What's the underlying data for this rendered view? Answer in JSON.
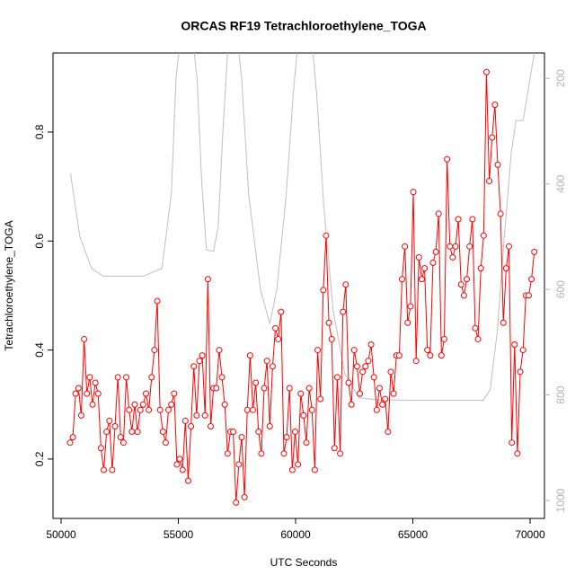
{
  "chart_data": {
    "type": "line",
    "title": "ORCAS RF19 Tetrachloroethylene_TOGA",
    "x_label": "UTC Seconds",
    "y_label": "Tetrachloroethylene_TOGA",
    "xlim": [
      49655,
      70613
    ],
    "ylim": [
      0.091,
      0.945
    ],
    "y2lim": [
      1034,
      152
    ],
    "xticks": [
      50000,
      55000,
      60000,
      65000,
      70000
    ],
    "yticks": [
      0.2,
      0.4,
      0.6,
      0.8
    ],
    "y2ticks": [
      200,
      400,
      600,
      800,
      1000
    ],
    "series": [
      {
        "color": "#ff0000",
        "markers": true,
        "x": [
          50380,
          50500,
          50620,
          50740,
          50860,
          50980,
          51100,
          51220,
          51340,
          51460,
          51580,
          51700,
          51820,
          51940,
          52060,
          52180,
          52300,
          52420,
          52540,
          52660,
          52780,
          52900,
          53020,
          53140,
          53260,
          53380,
          53500,
          53620,
          53740,
          53860,
          53980,
          54100,
          54220,
          54340,
          54460,
          54580,
          54700,
          54820,
          54940,
          55060,
          55180,
          55300,
          55420,
          55540,
          55660,
          55780,
          55900,
          56020,
          56140,
          56260,
          56380,
          56500,
          56620,
          56740,
          56860,
          56980,
          57100,
          57220,
          57340,
          57460,
          57580,
          57700,
          57820,
          57940,
          58060,
          58180,
          58300,
          58420,
          58540,
          58660,
          58780,
          58900,
          59020,
          59140,
          59260,
          59380,
          59500,
          59620,
          59740,
          59860,
          59980,
          60100,
          60220,
          60340,
          60460,
          60580,
          60700,
          60820,
          60940,
          61060,
          61180,
          61300,
          61420,
          61540,
          61660,
          61780,
          61900,
          62020,
          62140,
          62260,
          62380,
          62500,
          62620,
          62740,
          62860,
          62980,
          63100,
          63220,
          63340,
          63460,
          63580,
          63700,
          63820,
          63940,
          64060,
          64180,
          64300,
          64420,
          64540,
          64660,
          64780,
          64900,
          65020,
          65140,
          65260,
          65380,
          65500,
          65620,
          65740,
          65860,
          65980,
          66100,
          66220,
          66340,
          66460,
          66580,
          66700,
          66820,
          66940,
          67060,
          67180,
          67300,
          67420,
          67540,
          67660,
          67780,
          67900,
          68020,
          68140,
          68260,
          68380,
          68500,
          68620,
          68740,
          68860,
          68980,
          69100,
          69220,
          69340,
          69460,
          69580,
          69700,
          69820,
          69940,
          70060,
          70180
        ],
        "values": [
          0.23,
          0.24,
          0.32,
          0.33,
          0.28,
          0.42,
          0.32,
          0.35,
          0.3,
          0.34,
          0.32,
          0.22,
          0.18,
          0.25,
          0.27,
          0.18,
          0.26,
          0.35,
          0.24,
          0.23,
          0.35,
          0.29,
          0.25,
          0.3,
          0.25,
          0.29,
          0.3,
          0.32,
          0.29,
          0.35,
          0.4,
          0.49,
          0.29,
          0.25,
          0.23,
          0.29,
          0.3,
          0.32,
          0.19,
          0.2,
          0.18,
          0.27,
          0.16,
          0.26,
          0.37,
          0.28,
          0.38,
          0.39,
          0.28,
          0.53,
          0.26,
          0.33,
          0.33,
          0.4,
          0.35,
          0.3,
          0.21,
          0.25,
          0.25,
          0.12,
          0.19,
          0.24,
          0.13,
          0.29,
          0.39,
          0.29,
          0.34,
          0.25,
          0.21,
          0.33,
          0.38,
          0.26,
          0.37,
          0.44,
          0.42,
          0.47,
          0.21,
          0.24,
          0.33,
          0.18,
          0.25,
          0.19,
          0.32,
          0.28,
          0.23,
          0.33,
          0.29,
          0.18,
          0.4,
          0.31,
          0.51,
          0.61,
          0.45,
          0.42,
          0.22,
          0.35,
          0.21,
          0.47,
          0.52,
          0.34,
          0.3,
          0.4,
          0.37,
          0.32,
          0.36,
          0.37,
          0.38,
          0.41,
          0.35,
          0.29,
          0.33,
          0.3,
          0.31,
          0.25,
          0.36,
          0.32,
          0.39,
          0.39,
          0.53,
          0.59,
          0.45,
          0.48,
          0.69,
          0.38,
          0.57,
          0.53,
          0.55,
          0.4,
          0.39,
          0.56,
          0.58,
          0.65,
          0.39,
          0.42,
          0.75,
          0.59,
          0.57,
          0.59,
          0.64,
          0.52,
          0.5,
          0.53,
          0.59,
          0.64,
          0.44,
          0.42,
          0.55,
          0.61,
          0.91,
          0.71,
          0.79,
          0.85,
          0.74,
          0.65,
          0.45,
          0.55,
          0.59,
          0.23,
          0.41,
          0.21,
          0.36,
          0.4,
          0.5,
          0.5,
          0.53,
          0.58
        ]
      },
      {
        "color": "#bebebe",
        "axis": "y2",
        "markers": false,
        "x": [
          50400,
          50800,
          51300,
          51800,
          52500,
          53500,
          54300,
          54700,
          54900,
          55100,
          55600,
          55800,
          56000,
          56200,
          56500,
          56700,
          56900,
          57100,
          57500,
          57700,
          58000,
          58500,
          58900,
          59200,
          59600,
          59900,
          60100,
          60700,
          60900,
          61200,
          61600,
          62100,
          62700,
          63400,
          65000,
          68000,
          68300,
          68600,
          68900,
          69200,
          69400,
          69700,
          70000,
          70300
        ],
        "values": [
          380,
          500,
          560,
          575,
          575,
          575,
          560,
          420,
          200,
          120,
          120,
          200,
          400,
          525,
          528,
          480,
          300,
          150,
          120,
          200,
          420,
          600,
          665,
          600,
          420,
          230,
          130,
          130,
          230,
          440,
          640,
          760,
          805,
          809,
          810,
          810,
          790,
          680,
          500,
          340,
          280,
          280,
          200,
          120
        ]
      }
    ]
  }
}
